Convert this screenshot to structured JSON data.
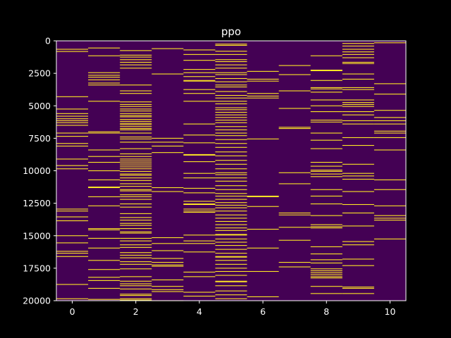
{
  "chart_data": {
    "type": "heatmap",
    "title": "ppo",
    "xlabel": "",
    "ylabel": "",
    "colormap": "viridis",
    "background_color": "#440154",
    "mark_color": "#fde725",
    "figure_background": "#000000",
    "text_color": "#ffffff",
    "grid": false,
    "x_range": [
      -0.5,
      10.5
    ],
    "y_range": [
      20000,
      0
    ],
    "y_inverted": true,
    "x_ticks": [
      0,
      2,
      4,
      6,
      8,
      10
    ],
    "x_tick_labels": [
      "0",
      "2",
      "4",
      "6",
      "8",
      "10"
    ],
    "y_ticks": [
      0,
      2500,
      5000,
      7500,
      10000,
      12500,
      15000,
      17500,
      20000
    ],
    "y_tick_labels": [
      "0",
      "2500",
      "5000",
      "7500",
      "10000",
      "12500",
      "15000",
      "17500",
      "20000"
    ],
    "columns": [
      {
        "x": 0,
        "rows": [
          650,
          820,
          4300,
          5250,
          5600,
          5800,
          6000,
          6150,
          6300,
          6500,
          7100,
          7350,
          7900,
          8100,
          9100,
          9600,
          9850,
          12950,
          13100,
          13550,
          13850,
          15000,
          15550,
          16200,
          16350,
          16600,
          18750,
          19850
        ]
      },
      {
        "x": 1,
        "rows": [
          550,
          1150,
          2450,
          2650,
          2800,
          3000,
          3250,
          3400,
          4650,
          7000,
          7100,
          8400,
          8900,
          9350,
          10000,
          10700,
          11250,
          11300,
          12000,
          12700,
          14450,
          14550,
          15200,
          15950,
          16900,
          17600,
          18200,
          18450,
          19050,
          19900
        ]
      },
      {
        "x": 2,
        "rows": [
          750,
          1100,
          1250,
          1450,
          1650,
          1850,
          2100,
          3400,
          3850,
          4050,
          4700,
          4900,
          5050,
          5250,
          5400,
          5600,
          5750,
          5850,
          6050,
          6200,
          6350,
          6450,
          6600,
          6750,
          6850,
          7100,
          7400,
          7550,
          7800,
          8300,
          8700,
          8900,
          9100,
          9250,
          9400,
          9550,
          9700,
          9850,
          10050,
          10250,
          10350,
          10550,
          10750,
          11000,
          11200,
          11450,
          11550,
          11850,
          12000,
          12200,
          12550,
          12800,
          13300,
          13600,
          13800,
          14050,
          14200,
          14450,
          14700,
          14800,
          15200,
          15400,
          15700,
          15900,
          16300,
          16500,
          16700,
          17000,
          17200,
          17550,
          18150,
          18500,
          18700,
          18850,
          19100,
          19500,
          19600,
          19850,
          19950
        ]
      },
      {
        "x": 3,
        "rows": [
          600,
          2550,
          7500,
          7800,
          8100,
          8600,
          11300,
          11600,
          15150,
          15600,
          16150,
          16750,
          17050,
          17250,
          17350,
          18400,
          18900,
          19150,
          19300,
          20000
        ]
      },
      {
        "x": 4,
        "rows": [
          700,
          1050,
          1500,
          2200,
          2450,
          2750,
          3050,
          3100,
          3750,
          4050,
          4650,
          6400,
          7250,
          7850,
          8750,
          8800,
          9300,
          10200,
          10550,
          11350,
          11700,
          12350,
          12550,
          12600,
          12950,
          13100,
          13200,
          14950,
          15400,
          15600,
          16250,
          17800,
          18150,
          19350,
          19650
        ]
      },
      {
        "x": 5,
        "rows": [
          250,
          350,
          800,
          1050,
          1450,
          1600,
          1850,
          2100,
          2450,
          2600,
          2900,
          3150,
          3400,
          3550,
          3900,
          4200,
          4400,
          4650,
          4850,
          5150,
          5300,
          5500,
          5700,
          5900,
          6100,
          6300,
          6600,
          6850,
          7100,
          7300,
          7600,
          7900,
          8200,
          8550,
          8850,
          9200,
          9500,
          9850,
          10150,
          10300,
          10550,
          10800,
          11150,
          11450,
          11750,
          11950,
          12200,
          12450,
          12650,
          12850,
          13100,
          13400,
          13650,
          13900,
          14150,
          14400,
          14600,
          14900,
          14950,
          15250,
          15500,
          15750,
          16050,
          16350,
          16600,
          16650,
          16900,
          17200,
          17500,
          17750,
          18050,
          18500,
          18550,
          18850,
          19250,
          19550,
          19850
        ]
      },
      {
        "x": 6,
        "rows": [
          2350,
          2950,
          3100,
          4050,
          4250,
          4400,
          7550,
          11950,
          12000,
          12750,
          14500,
          15950,
          17750,
          19700
        ]
      },
      {
        "x": 7,
        "rows": [
          1900,
          2600,
          3850,
          5200,
          6650,
          6750,
          10150,
          11000,
          13250,
          13400,
          14350,
          15350,
          17050,
          17400
        ]
      },
      {
        "x": 8,
        "rows": [
          1150,
          2250,
          2300,
          3050,
          3600,
          3700,
          3950,
          4550,
          5000,
          5450,
          6100,
          6250,
          7100,
          7650,
          8300,
          9350,
          9650,
          9950,
          10050,
          10250,
          10450,
          11450,
          11950,
          12550,
          13450,
          14150,
          14300,
          14400,
          15850,
          16400,
          16850,
          17100,
          17550,
          17700,
          17850,
          18000,
          18150,
          18250,
          18900,
          19450
        ]
      },
      {
        "x": 9,
        "rows": [
          200,
          400,
          650,
          850,
          1050,
          1300,
          1650,
          1750,
          2550,
          2950,
          3600,
          3750,
          4550,
          4750,
          4900,
          5050,
          5450,
          5700,
          6150,
          6400,
          7450,
          8050,
          9500,
          10200,
          10400,
          10650,
          11600,
          12600,
          13250,
          14250,
          15450,
          15700,
          16800,
          17300,
          18950,
          19050,
          19450
        ]
      },
      {
        "x": 10,
        "rows": [
          150,
          3300,
          4100,
          5350,
          5900,
          6150,
          6400,
          6950,
          7100,
          7450,
          8400,
          10700,
          11450,
          12700,
          13450,
          13650,
          13800,
          15250
        ]
      }
    ]
  }
}
